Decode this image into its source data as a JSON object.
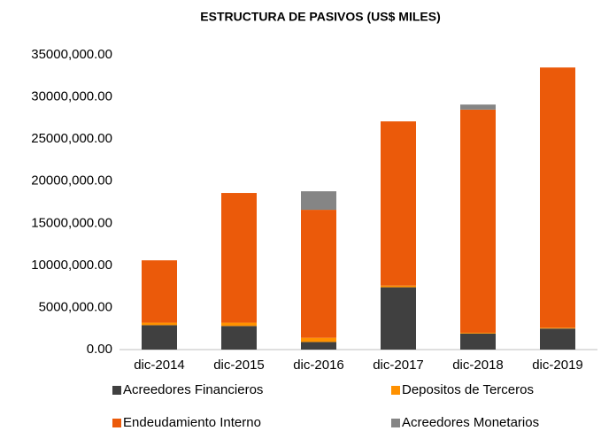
{
  "chart_data": {
    "type": "stacked_bar",
    "title": "ESTRUCTURA DE PASIVOS (US$ MILES)",
    "categories": [
      "dic-2014",
      "dic-2015",
      "dic-2016",
      "dic-2017",
      "dic-2018",
      "dic-2019"
    ],
    "series": [
      {
        "name": "Acreedores Financieros",
        "color": "#404040",
        "values": [
          2900000,
          2800000,
          900000,
          7400000,
          1900000,
          2500000
        ]
      },
      {
        "name": "Depositos de Terceros",
        "color": "#ff9100",
        "values": [
          300000,
          400000,
          500000,
          200000,
          100000,
          100000
        ]
      },
      {
        "name": "Endeudamiento  Interno",
        "color": "#eb5a0a",
        "values": [
          7400000,
          15400000,
          15200000,
          19500000,
          26500000,
          30900000
        ]
      },
      {
        "name": "Acreedores Monetarios",
        "color": "#858585",
        "values": [
          0,
          0,
          2200000,
          0,
          600000,
          0
        ]
      }
    ],
    "ylim": [
      0,
      35000000
    ],
    "yticks": [
      {
        "value": 0,
        "label": "0.00"
      },
      {
        "value": 5000000,
        "label": "5000,000.00"
      },
      {
        "value": 10000000,
        "label": "10000,000.00"
      },
      {
        "value": 15000000,
        "label": "15000,000.00"
      },
      {
        "value": 20000000,
        "label": "20000,000.00"
      },
      {
        "value": 25000000,
        "label": "25000,000.00"
      },
      {
        "value": 30000000,
        "label": "30000,000.00"
      },
      {
        "value": 35000000,
        "label": "35000,000.00"
      }
    ]
  }
}
